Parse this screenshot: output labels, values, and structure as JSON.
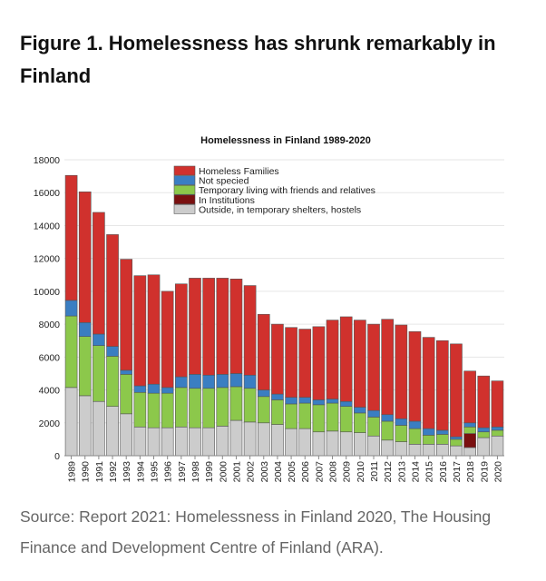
{
  "article": {
    "heading": "Figure 1. Homelessness has shrunk remarkably in Finland",
    "source": "Source: Report 2021: Homelessness in Finland 2020, The Housing Finance and Development Centre of Finland (ARA)."
  },
  "chart_data": {
    "type": "bar",
    "stacked": true,
    "title": "Homelessness in Finland 1989-2020",
    "xlabel": "",
    "ylabel": "",
    "ylim": [
      0,
      18000
    ],
    "yticks": [
      "0",
      "2000",
      "4000",
      "6000",
      "8000",
      "10000",
      "12000",
      "14000",
      "16000",
      "18000"
    ],
    "grid": true,
    "legend_position": "top-center",
    "categories": [
      "1989",
      "1990",
      "1991",
      "1992",
      "1993",
      "1994",
      "1995",
      "1996",
      "1997",
      "1998",
      "1999",
      "2000",
      "2001",
      "2002",
      "2003",
      "2004",
      "2005",
      "2006",
      "2007",
      "2008",
      "2009",
      "2010",
      "2011",
      "2012",
      "2013",
      "2014",
      "2015",
      "2016",
      "2017",
      "2018",
      "2019",
      "2020"
    ],
    "series": [
      {
        "name": "Outside, in temporary shelters, hostels",
        "color": "#cccccc",
        "values": [
          4150,
          3650,
          3300,
          3000,
          2550,
          1750,
          1700,
          1700,
          1750,
          1700,
          1700,
          1800,
          2150,
          2050,
          2000,
          1900,
          1650,
          1650,
          1450,
          1500,
          1450,
          1400,
          1200,
          950,
          850,
          700,
          700,
          700,
          600,
          500,
          1100,
          1200
        ]
      },
      {
        "name": "In Institutions",
        "color": "#7a1010",
        "values": [
          0,
          0,
          0,
          0,
          0,
          0,
          0,
          0,
          0,
          0,
          0,
          0,
          0,
          0,
          0,
          0,
          0,
          0,
          0,
          0,
          0,
          0,
          0,
          0,
          0,
          0,
          0,
          0,
          0,
          850,
          0,
          0
        ]
      },
      {
        "name": "Temporary living with friends and relatives",
        "color": "#8cc84b",
        "values": [
          4350,
          3600,
          3400,
          3050,
          2400,
          2100,
          2100,
          2100,
          2400,
          2400,
          2400,
          2350,
          2050,
          2050,
          1600,
          1500,
          1500,
          1550,
          1650,
          1700,
          1550,
          1200,
          1150,
          1150,
          1000,
          950,
          550,
          600,
          400,
          400,
          350,
          350
        ]
      },
      {
        "name": "Not specied",
        "color": "#3a7ec2",
        "values": [
          950,
          850,
          700,
          600,
          250,
          400,
          550,
          350,
          650,
          850,
          800,
          800,
          800,
          800,
          400,
          350,
          400,
          350,
          300,
          250,
          300,
          350,
          400,
          400,
          400,
          450,
          400,
          250,
          150,
          250,
          250,
          200
        ]
      },
      {
        "name": "Homeless Families",
        "color": "#d0312d",
        "values": [
          7600,
          7950,
          7400,
          6800,
          6750,
          6700,
          6650,
          5850,
          5650,
          5850,
          5900,
          5850,
          5750,
          5450,
          4600,
          4250,
          4250,
          4150,
          4450,
          4800,
          5150,
          5300,
          5250,
          5800,
          5700,
          5450,
          5550,
          5450,
          5650,
          3150,
          3150,
          2800
        ]
      }
    ],
    "legend_order": [
      4,
      3,
      2,
      1,
      0
    ]
  }
}
